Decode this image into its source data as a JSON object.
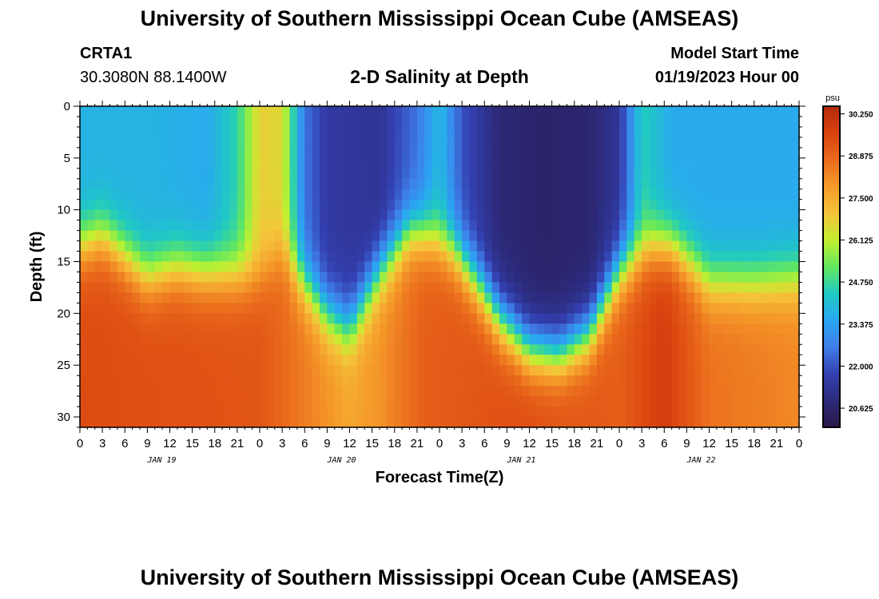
{
  "header": {
    "title": "University of Southern Mississippi Ocean Cube (AMSEAS)",
    "station": "CRTA1",
    "coords": "30.3080N  88.1400W",
    "plot_title": "2-D Salinity at Depth",
    "start_label": "Model Start Time",
    "start_value": "01/19/2023 Hour 00"
  },
  "footer": {
    "title": "University of Southern Mississippi Ocean Cube (AMSEAS)"
  },
  "colors": {
    "scale": [
      "#2a1748",
      "#2c2a7a",
      "#3340b0",
      "#3f7ee8",
      "#2aa6f2",
      "#20c9c4",
      "#62e85e",
      "#c2f030",
      "#f5c43a",
      "#f59a2a",
      "#ea6a1c",
      "#d9420f",
      "#b22a0a"
    ]
  },
  "chart_data": {
    "type": "heatmap",
    "title": "2-D Salinity at Depth",
    "xlabel": "Forecast Time(Z)",
    "ylabel": "Depth (ft)",
    "x_range": [
      0,
      96
    ],
    "y_range": [
      0,
      31
    ],
    "x_tick_values": [
      0,
      3,
      6,
      9,
      12,
      15,
      18,
      21,
      24,
      27,
      30,
      33,
      36,
      39,
      42,
      45,
      48,
      51,
      54,
      57,
      60,
      63,
      66,
      69,
      72,
      75,
      78,
      81,
      84,
      87,
      90,
      93,
      96
    ],
    "x_tick_labels": [
      "0",
      "3",
      "6",
      "9",
      "12",
      "15",
      "18",
      "21",
      "0",
      "3",
      "6",
      "9",
      "12",
      "15",
      "18",
      "21",
      "0",
      "3",
      "6",
      "9",
      "12",
      "15",
      "18",
      "21",
      "0",
      "3",
      "6",
      "9",
      "12",
      "15",
      "18",
      "21",
      "0"
    ],
    "date_labels": [
      {
        "text": "JAN 19",
        "hour": 12
      },
      {
        "text": "JAN 20",
        "hour": 36
      },
      {
        "text": "JAN 21",
        "hour": 60
      },
      {
        "text": "JAN 22",
        "hour": 84
      }
    ],
    "y_ticks": [
      0,
      5,
      10,
      15,
      20,
      25,
      30
    ],
    "y_tick_labels": [
      "0",
      "5",
      "10",
      "15",
      "20",
      "25",
      "30"
    ],
    "colorbar": {
      "unit": "psu",
      "min": 20.0,
      "max": 30.5,
      "labels": [
        "30.250",
        "28.875",
        "27.500",
        "26.125",
        "24.750",
        "23.375",
        "22.000",
        "20.625"
      ],
      "label_values": [
        30.25,
        28.875,
        27.5,
        26.125,
        24.75,
        23.375,
        22.0,
        20.625
      ]
    },
    "surface_salinity": [
      {
        "hour": 0,
        "value": 23.8
      },
      {
        "hour": 10,
        "value": 23.8
      },
      {
        "hour": 17,
        "value": 23.6
      },
      {
        "hour": 21,
        "value": 24.6
      },
      {
        "hour": 24,
        "value": 26.8
      },
      {
        "hour": 27,
        "value": 26.6
      },
      {
        "hour": 30,
        "value": 22.5
      },
      {
        "hour": 33,
        "value": 21.5
      },
      {
        "hour": 40,
        "value": 21.3
      },
      {
        "hour": 45,
        "value": 22.5
      },
      {
        "hour": 48,
        "value": 24.0
      },
      {
        "hour": 51,
        "value": 22.0
      },
      {
        "hour": 56,
        "value": 20.8
      },
      {
        "hour": 62,
        "value": 20.6
      },
      {
        "hour": 68,
        "value": 20.7
      },
      {
        "hour": 72,
        "value": 21.4
      },
      {
        "hour": 75,
        "value": 24.5
      },
      {
        "hour": 79,
        "value": 23.6
      },
      {
        "hour": 96,
        "value": 23.6
      }
    ],
    "halocline_depth_ft": [
      {
        "hour": 0,
        "value": 13.5
      },
      {
        "hour": 3,
        "value": 12.5
      },
      {
        "hour": 6,
        "value": 14.5
      },
      {
        "hour": 9,
        "value": 16.5
      },
      {
        "hour": 13,
        "value": 15.5
      },
      {
        "hour": 16,
        "value": 16.0
      },
      {
        "hour": 24,
        "value": 16.5
      },
      {
        "hour": 27,
        "value": 14.0
      },
      {
        "hour": 30,
        "value": 17.0
      },
      {
        "hour": 33,
        "value": 20.0
      },
      {
        "hour": 36,
        "value": 21.5
      },
      {
        "hour": 40,
        "value": 16.0
      },
      {
        "hour": 44,
        "value": 12.0
      },
      {
        "hour": 47,
        "value": 12.5
      },
      {
        "hour": 50,
        "value": 14.0
      },
      {
        "hour": 53,
        "value": 17.0
      },
      {
        "hour": 56,
        "value": 20.5
      },
      {
        "hour": 60,
        "value": 23.5
      },
      {
        "hour": 64,
        "value": 24.0
      },
      {
        "hour": 68,
        "value": 22.0
      },
      {
        "hour": 72,
        "value": 16.0
      },
      {
        "hour": 76,
        "value": 13.5
      },
      {
        "hour": 79,
        "value": 13.5
      },
      {
        "hour": 82,
        "value": 15.5
      },
      {
        "hour": 84,
        "value": 17.0
      },
      {
        "hour": 90,
        "value": 17.0
      },
      {
        "hour": 96,
        "value": 16.5
      }
    ],
    "bottom_salinity": [
      {
        "hour": 0,
        "value": 29.4
      },
      {
        "hour": 24,
        "value": 29.2
      },
      {
        "hour": 33,
        "value": 28.0
      },
      {
        "hour": 36,
        "value": 27.6
      },
      {
        "hour": 40,
        "value": 28.0
      },
      {
        "hour": 46,
        "value": 29.0
      },
      {
        "hour": 60,
        "value": 29.4
      },
      {
        "hour": 72,
        "value": 29.0
      },
      {
        "hour": 78,
        "value": 29.8
      },
      {
        "hour": 84,
        "value": 28.6
      },
      {
        "hour": 96,
        "value": 28.2
      }
    ]
  }
}
